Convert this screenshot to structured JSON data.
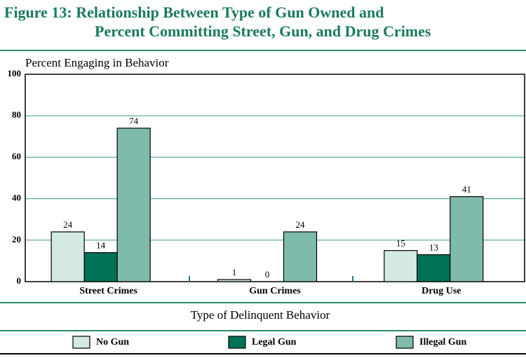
{
  "chart_data": {
    "type": "bar",
    "title_lines": [
      "Figure 13: Relationship Between Type of Gun Owned and",
      "Percent Committing Street, Gun, and Drug Crimes"
    ],
    "y_label": "Percent Engaging in Behavior",
    "x_label": "Type of Delinquent Behavior",
    "categories": [
      "Street Crimes",
      "Gun Crimes",
      "Drug Use"
    ],
    "series": [
      {
        "name": "No Gun",
        "color": "#d3e9e1",
        "values": [
          24,
          1,
          15
        ]
      },
      {
        "name": "Legal Gun",
        "color": "#007155",
        "values": [
          14,
          0,
          13
        ]
      },
      {
        "name": "Illegal Gun",
        "color": "#7fbbab",
        "values": [
          74,
          24,
          41
        ]
      }
    ],
    "ylim": [
      0,
      100
    ],
    "yticks": [
      0,
      20,
      40,
      60,
      80,
      100
    ],
    "grid": true
  }
}
